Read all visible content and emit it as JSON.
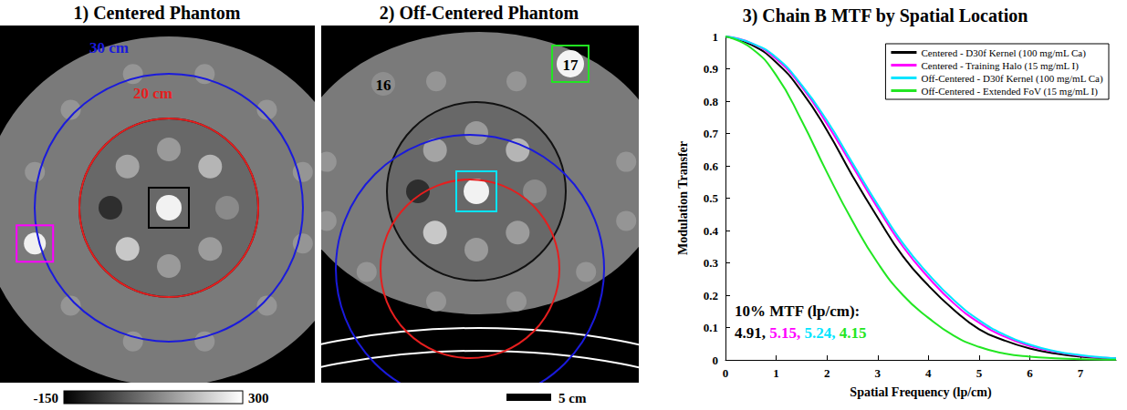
{
  "panels": [
    {
      "title": "1) Centered Phantom",
      "rings": [
        {
          "label": "30 cm",
          "diameter_cm": 30,
          "color": "#1a1adc"
        },
        {
          "label": "20 cm",
          "diameter_cm": 20,
          "color": "#e61e1e"
        }
      ],
      "colorbar": {
        "min": -150,
        "max": 300
      }
    },
    {
      "title": "2) Off-Centered Phantom",
      "rings": [
        {
          "diameter_cm": 30,
          "color": "#1a1adc"
        },
        {
          "diameter_cm": 20,
          "color": "#e61e1e"
        }
      ],
      "insert_labels": [
        "16",
        "17"
      ],
      "scalebar": {
        "length_cm": 5,
        "label": "5 cm"
      }
    }
  ],
  "chart_data": {
    "type": "line",
    "title": "3) Chain B MTF by Spatial Location",
    "xlabel": "Spatial Frequency (lp/cm)",
    "ylabel": "Modulation Transfer",
    "x": [
      0,
      0.5,
      1,
      1.5,
      2,
      2.5,
      3,
      3.5,
      4,
      4.5,
      5,
      5.5,
      6,
      6.5,
      7,
      7.5,
      7.7
    ],
    "series": [
      {
        "name": "Centered - D30f Kernel (100 mg/mL Ca)",
        "color": "#000000",
        "values": [
          1,
          0.975,
          0.92,
          0.83,
          0.71,
          0.57,
          0.44,
          0.32,
          0.23,
          0.155,
          0.095,
          0.06,
          0.035,
          0.02,
          0.01,
          0.005,
          0.004
        ]
      },
      {
        "name": "Centered - Training Halo (15 mg/mL I)",
        "color": "#ff00ff",
        "values": [
          1,
          0.98,
          0.93,
          0.845,
          0.73,
          0.6,
          0.47,
          0.35,
          0.255,
          0.175,
          0.115,
          0.072,
          0.043,
          0.025,
          0.013,
          0.006,
          0.005
        ]
      },
      {
        "name": "Off-Centered - D30f Kernel (100 mg/mL Ca)",
        "color": "#00e5ff",
        "values": [
          1,
          0.98,
          0.935,
          0.85,
          0.74,
          0.61,
          0.48,
          0.36,
          0.265,
          0.185,
          0.123,
          0.078,
          0.047,
          0.027,
          0.015,
          0.007,
          0.005
        ]
      },
      {
        "name": "Off-Centered - Extended FoV (15 mg/mL I)",
        "color": "#22e622",
        "values": [
          1,
          0.965,
          0.88,
          0.74,
          0.58,
          0.43,
          0.3,
          0.2,
          0.13,
          0.075,
          0.04,
          0.02,
          0.01,
          0.005,
          0.002,
          0.001,
          0.001
        ]
      }
    ],
    "xlim": [
      0,
      7.7
    ],
    "ylim": [
      0,
      1
    ],
    "xticks": [
      0,
      1,
      2,
      3,
      4,
      5,
      6,
      7
    ],
    "yticks": [
      0,
      0.1,
      0.2,
      0.3,
      0.4,
      0.5,
      0.6,
      0.7,
      0.8,
      0.9,
      1
    ],
    "grid": false,
    "legend": "upper right",
    "annotations": [
      {
        "text": "10% MTF (lp/cm):",
        "values": [
          4.91,
          5.15,
          5.24,
          4.15
        ],
        "value_labels": [
          "4.91,",
          "5.15,",
          "5.24,",
          "4.15"
        ]
      }
    ]
  }
}
